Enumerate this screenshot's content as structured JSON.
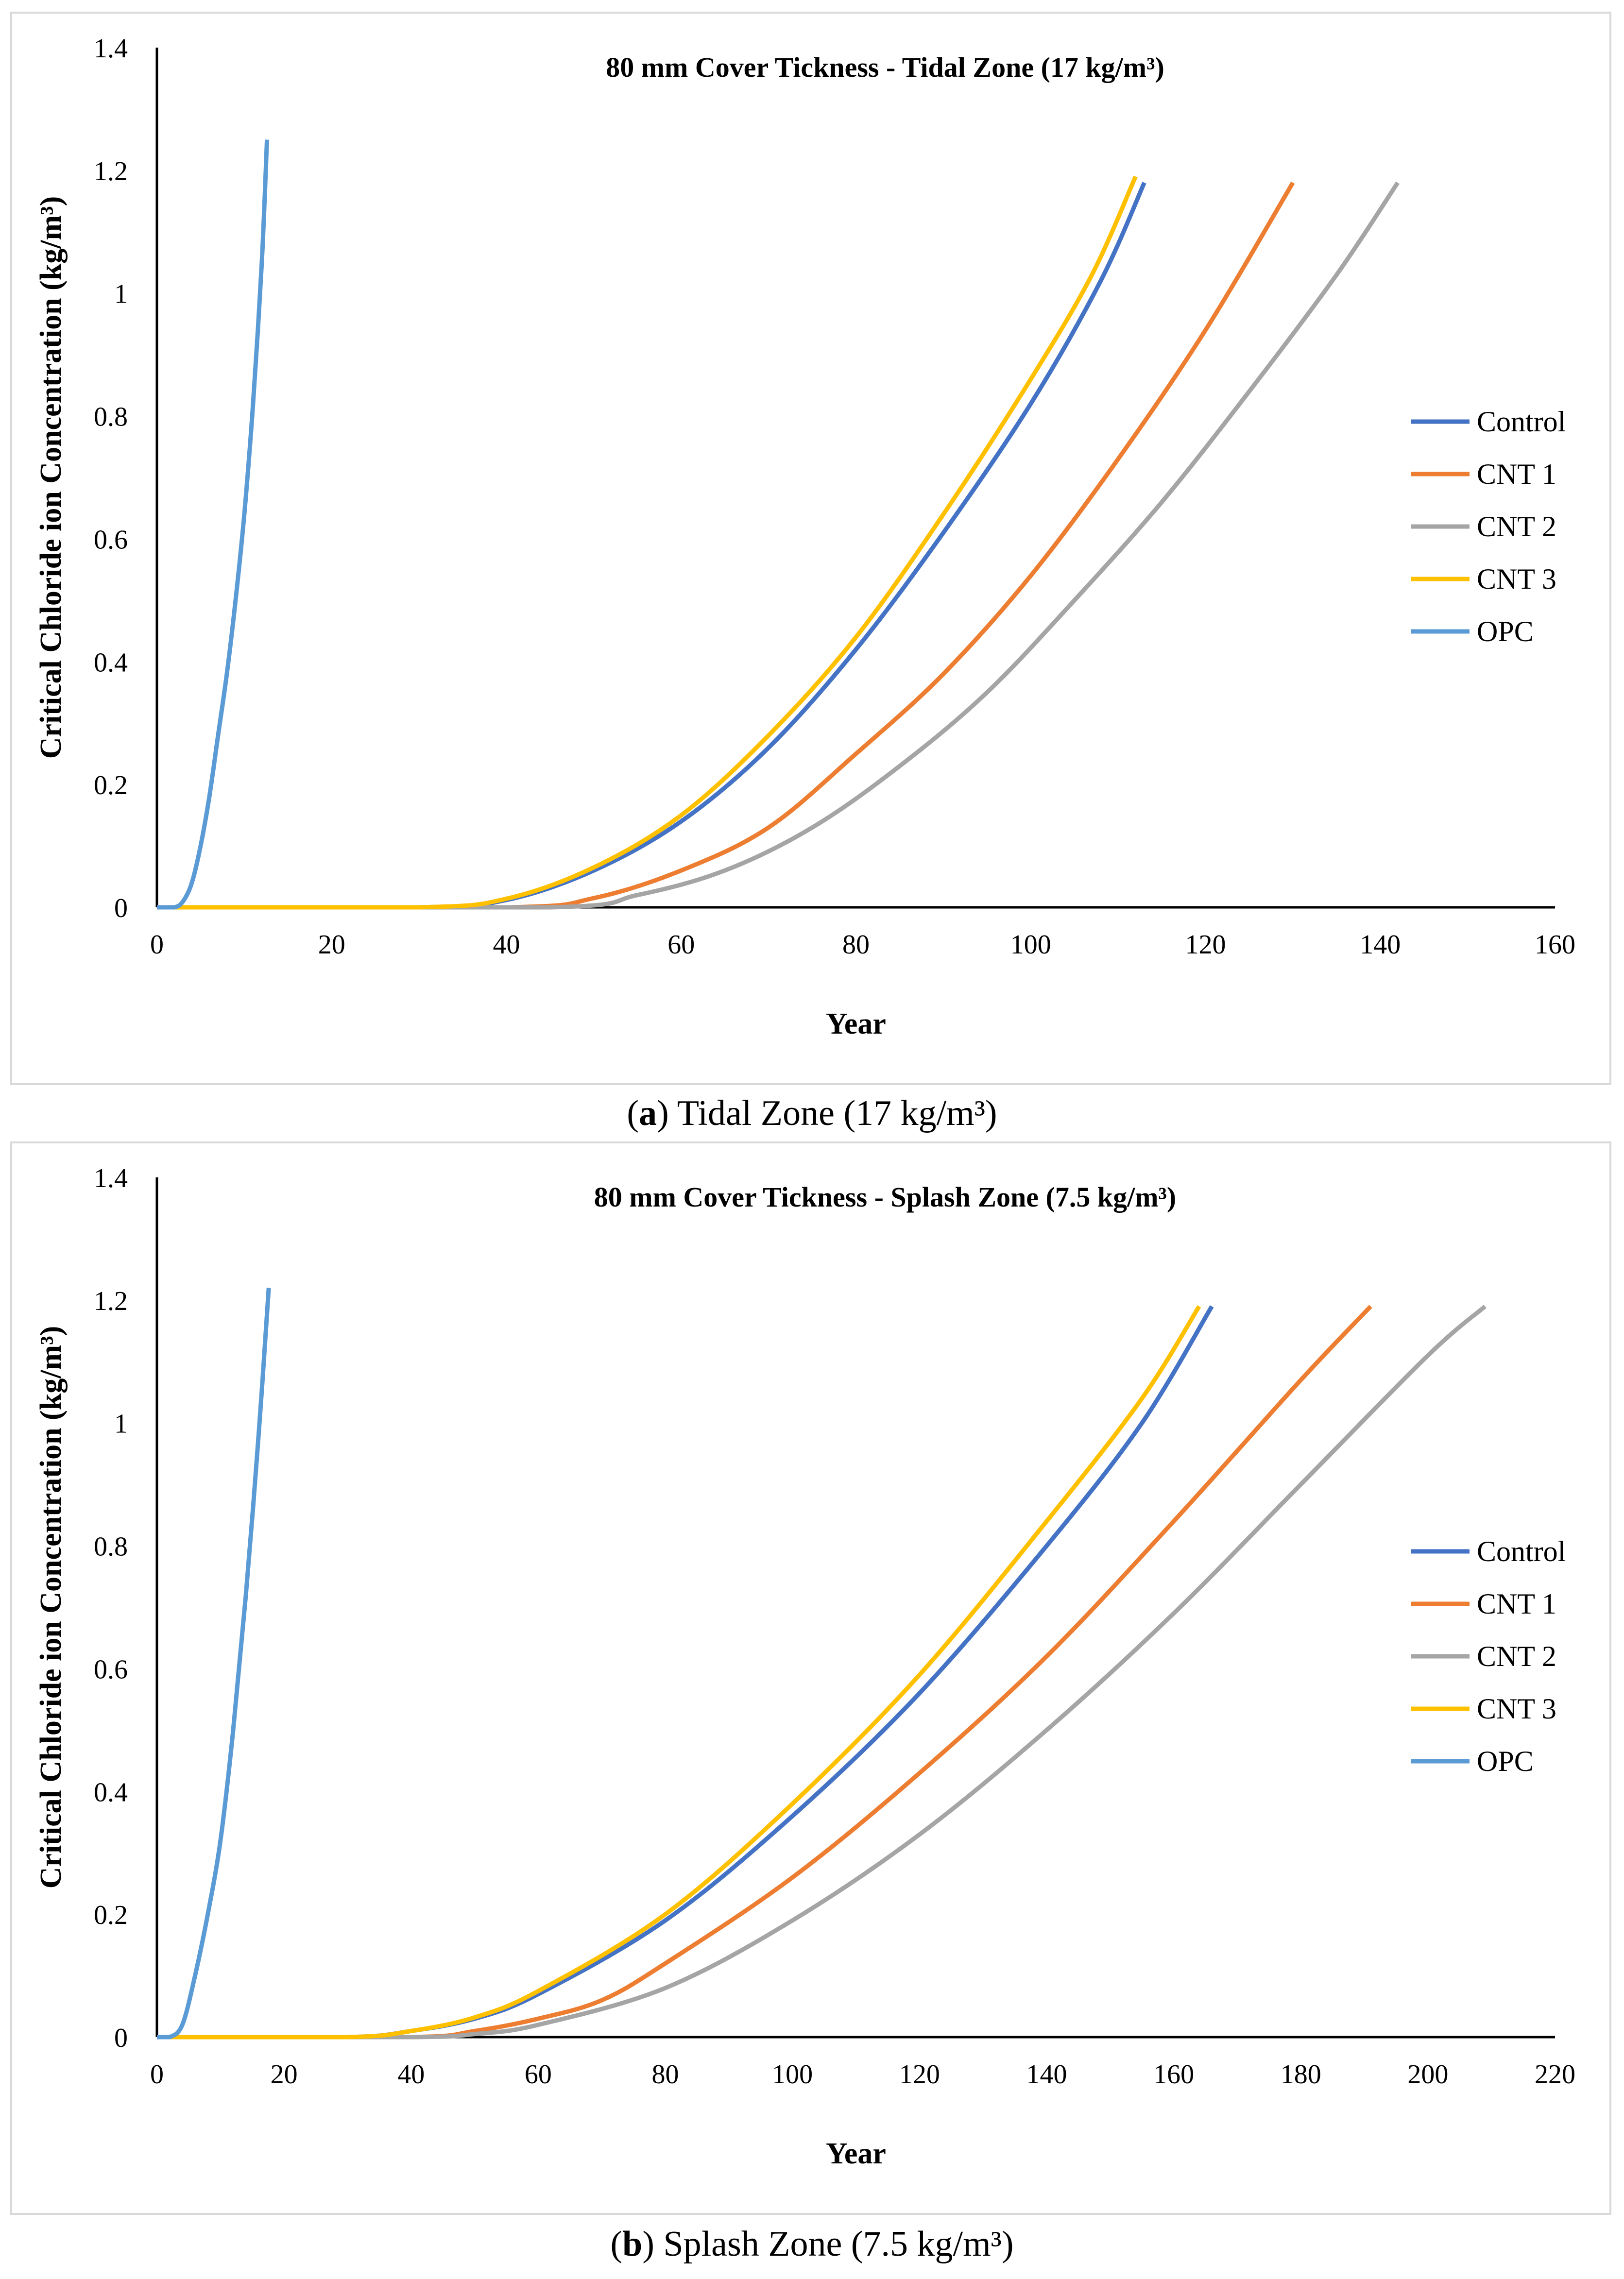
{
  "chart_data": [
    {
      "type": "line",
      "title": "80 mm Cover Tickness - Tidal Zone (17 kg/m³)",
      "xlabel": "Year",
      "ylabel": "Critical Chloride ion Concentration (kg/m³)",
      "xlim": [
        0,
        160
      ],
      "ylim": [
        0,
        1.4
      ],
      "xticks": [
        "0",
        "20",
        "40",
        "60",
        "80",
        "100",
        "120",
        "140",
        "160"
      ],
      "yticks": [
        "0",
        "0.2",
        "0.4",
        "0.6",
        "0.8",
        "1",
        "1.2",
        "1.4"
      ],
      "legend_position": "right",
      "series": [
        {
          "name": "Control",
          "color": "#4472C4",
          "points": [
            [
              0,
              0
            ],
            [
              30,
              0
            ],
            [
              40,
              0.012
            ],
            [
              50,
              0.06
            ],
            [
              60,
              0.14
            ],
            [
              70,
              0.26
            ],
            [
              80,
              0.42
            ],
            [
              90,
              0.61
            ],
            [
              100,
              0.82
            ],
            [
              108,
              1.02
            ],
            [
              113,
              1.18
            ]
          ]
        },
        {
          "name": "CNT 1",
          "color": "#ED7D31",
          "points": [
            [
              0,
              0
            ],
            [
              40,
              0
            ],
            [
              50,
              0.015
            ],
            [
              60,
              0.06
            ],
            [
              70,
              0.13
            ],
            [
              80,
              0.25
            ],
            [
              90,
              0.38
            ],
            [
              100,
              0.54
            ],
            [
              110,
              0.73
            ],
            [
              120,
              0.94
            ],
            [
              130,
              1.18
            ]
          ]
        },
        {
          "name": "CNT 2",
          "color": "#A5A5A5",
          "points": [
            [
              0,
              0
            ],
            [
              45,
              0
            ],
            [
              55,
              0.02
            ],
            [
              65,
              0.06
            ],
            [
              75,
              0.13
            ],
            [
              85,
              0.23
            ],
            [
              95,
              0.35
            ],
            [
              105,
              0.5
            ],
            [
              115,
              0.66
            ],
            [
              125,
              0.84
            ],
            [
              135,
              1.03
            ],
            [
              142,
              1.18
            ]
          ]
        },
        {
          "name": "CNT 3",
          "color": "#FFC000",
          "points": [
            [
              0,
              0
            ],
            [
              30,
              0
            ],
            [
              40,
              0.014
            ],
            [
              50,
              0.065
            ],
            [
              60,
              0.15
            ],
            [
              70,
              0.28
            ],
            [
              80,
              0.44
            ],
            [
              90,
              0.64
            ],
            [
              100,
              0.86
            ],
            [
              107,
              1.03
            ],
            [
              112,
              1.19
            ]
          ]
        },
        {
          "name": "OPC",
          "color": "#5B9BD5",
          "points": [
            [
              0,
              0
            ],
            [
              2,
              0
            ],
            [
              3,
              0.01
            ],
            [
              4,
              0.04
            ],
            [
              5,
              0.1
            ],
            [
              6,
              0.18
            ],
            [
              7,
              0.28
            ],
            [
              8,
              0.38
            ],
            [
              9,
              0.5
            ],
            [
              10,
              0.64
            ],
            [
              11,
              0.82
            ],
            [
              12,
              1.05
            ],
            [
              12.6,
              1.25
            ]
          ]
        }
      ]
    },
    {
      "type": "line",
      "title": "80 mm Cover Tickness - Splash Zone (7.5 kg/m³)",
      "xlabel": "Year",
      "ylabel": "Critical Chloride ion Concentration (kg/m³)",
      "xlim": [
        0,
        220
      ],
      "ylim": [
        0,
        1.4
      ],
      "xticks": [
        "0",
        "20",
        "40",
        "60",
        "80",
        "100",
        "120",
        "140",
        "160",
        "180",
        "200",
        "220"
      ],
      "yticks": [
        "0",
        "0.2",
        "0.4",
        "0.6",
        "0.8",
        "1",
        "1.2",
        "1.4"
      ],
      "legend_position": "right",
      "series": [
        {
          "name": "Control",
          "color": "#4472C4",
          "points": [
            [
              0,
              0
            ],
            [
              30,
              0
            ],
            [
              40,
              0.01
            ],
            [
              50,
              0.03
            ],
            [
              60,
              0.07
            ],
            [
              80,
              0.19
            ],
            [
              100,
              0.36
            ],
            [
              120,
              0.56
            ],
            [
              140,
              0.8
            ],
            [
              155,
              1.0
            ],
            [
              166,
              1.19
            ]
          ]
        },
        {
          "name": "CNT 1",
          "color": "#ED7D31",
          "points": [
            [
              0,
              0
            ],
            [
              40,
              0
            ],
            [
              50,
              0.01
            ],
            [
              60,
              0.03
            ],
            [
              70,
              0.06
            ],
            [
              80,
              0.12
            ],
            [
              100,
              0.26
            ],
            [
              120,
              0.43
            ],
            [
              140,
              0.62
            ],
            [
              160,
              0.84
            ],
            [
              180,
              1.07
            ],
            [
              191,
              1.19
            ]
          ]
        },
        {
          "name": "CNT 2",
          "color": "#A5A5A5",
          "points": [
            [
              0,
              0
            ],
            [
              40,
              0
            ],
            [
              50,
              0.005
            ],
            [
              60,
              0.02
            ],
            [
              80,
              0.08
            ],
            [
              100,
              0.19
            ],
            [
              120,
              0.33
            ],
            [
              140,
              0.5
            ],
            [
              160,
              0.69
            ],
            [
              180,
              0.9
            ],
            [
              200,
              1.11
            ],
            [
              209,
              1.19
            ]
          ]
        },
        {
          "name": "CNT 3",
          "color": "#FFC000",
          "points": [
            [
              0,
              0
            ],
            [
              30,
              0
            ],
            [
              40,
              0.01
            ],
            [
              50,
              0.032
            ],
            [
              60,
              0.075
            ],
            [
              80,
              0.2
            ],
            [
              100,
              0.38
            ],
            [
              120,
              0.59
            ],
            [
              140,
              0.84
            ],
            [
              155,
              1.04
            ],
            [
              164,
              1.19
            ]
          ]
        },
        {
          "name": "OPC",
          "color": "#5B9BD5",
          "points": [
            [
              0,
              0
            ],
            [
              2,
              0
            ],
            [
              4,
              0.02
            ],
            [
              6,
              0.1
            ],
            [
              8,
              0.2
            ],
            [
              10,
              0.32
            ],
            [
              12,
              0.5
            ],
            [
              14,
              0.72
            ],
            [
              16,
              0.98
            ],
            [
              17.6,
              1.22
            ]
          ]
        }
      ]
    }
  ],
  "captions": [
    {
      "letter": "a",
      "text": ") Tidal Zone (17 kg/m³)",
      "open": "("
    },
    {
      "letter": "b",
      "text": ") Splash Zone (7.5 kg/m³)",
      "open": "("
    }
  ]
}
